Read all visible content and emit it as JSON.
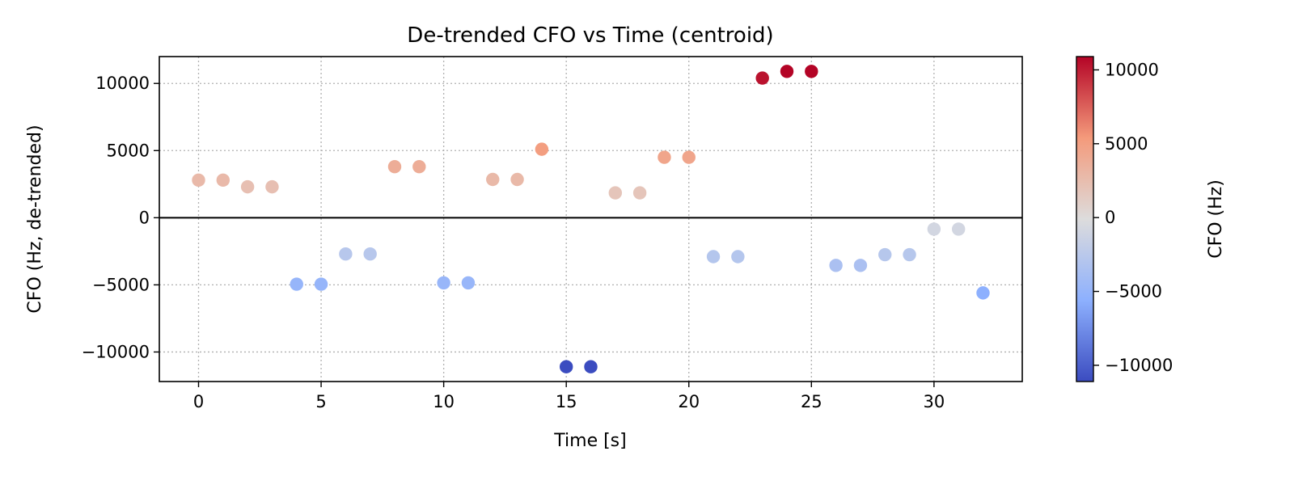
{
  "chart_data": {
    "type": "scatter",
    "title": "De-trended CFO vs Time (centroid)",
    "xlabel": "Time [s]",
    "ylabel": "CFO (Hz, de-trended)",
    "xlim": [
      -1.6,
      33.6
    ],
    "ylim": [
      -12200,
      12000
    ],
    "xticks": [
      0,
      5,
      10,
      15,
      20,
      25,
      30
    ],
    "yticks": [
      -10000,
      -5000,
      0,
      5000,
      10000
    ],
    "grid": true,
    "zero_line": true,
    "colormap": "coolwarm",
    "colorbar": {
      "label": "CFO (Hz)",
      "range": [
        -11100,
        10900
      ],
      "ticks": [
        -10000,
        -5000,
        0,
        5000,
        10000
      ]
    },
    "points": [
      {
        "x": 0,
        "y": 2800
      },
      {
        "x": 1,
        "y": 2800
      },
      {
        "x": 2,
        "y": 2300
      },
      {
        "x": 3,
        "y": 2300
      },
      {
        "x": 4,
        "y": -4950
      },
      {
        "x": 5,
        "y": -4950
      },
      {
        "x": 6,
        "y": -2700
      },
      {
        "x": 7,
        "y": -2700
      },
      {
        "x": 8,
        "y": 3800
      },
      {
        "x": 9,
        "y": 3800
      },
      {
        "x": 10,
        "y": -4850
      },
      {
        "x": 11,
        "y": -4850
      },
      {
        "x": 12,
        "y": 2850
      },
      {
        "x": 13,
        "y": 2850
      },
      {
        "x": 14,
        "y": 5100
      },
      {
        "x": 15,
        "y": -11100
      },
      {
        "x": 16,
        "y": -11100
      },
      {
        "x": 17,
        "y": 1850
      },
      {
        "x": 18,
        "y": 1850
      },
      {
        "x": 19,
        "y": 4500
      },
      {
        "x": 20,
        "y": 4500
      },
      {
        "x": 21,
        "y": -2900
      },
      {
        "x": 22,
        "y": -2900
      },
      {
        "x": 23,
        "y": 10400
      },
      {
        "x": 24,
        "y": 10900
      },
      {
        "x": 25,
        "y": 10900
      },
      {
        "x": 26,
        "y": -3550
      },
      {
        "x": 27,
        "y": -3550
      },
      {
        "x": 28,
        "y": -2750
      },
      {
        "x": 29,
        "y": -2750
      },
      {
        "x": 30,
        "y": -850
      },
      {
        "x": 31,
        "y": -850
      },
      {
        "x": 32,
        "y": -5600
      }
    ]
  }
}
